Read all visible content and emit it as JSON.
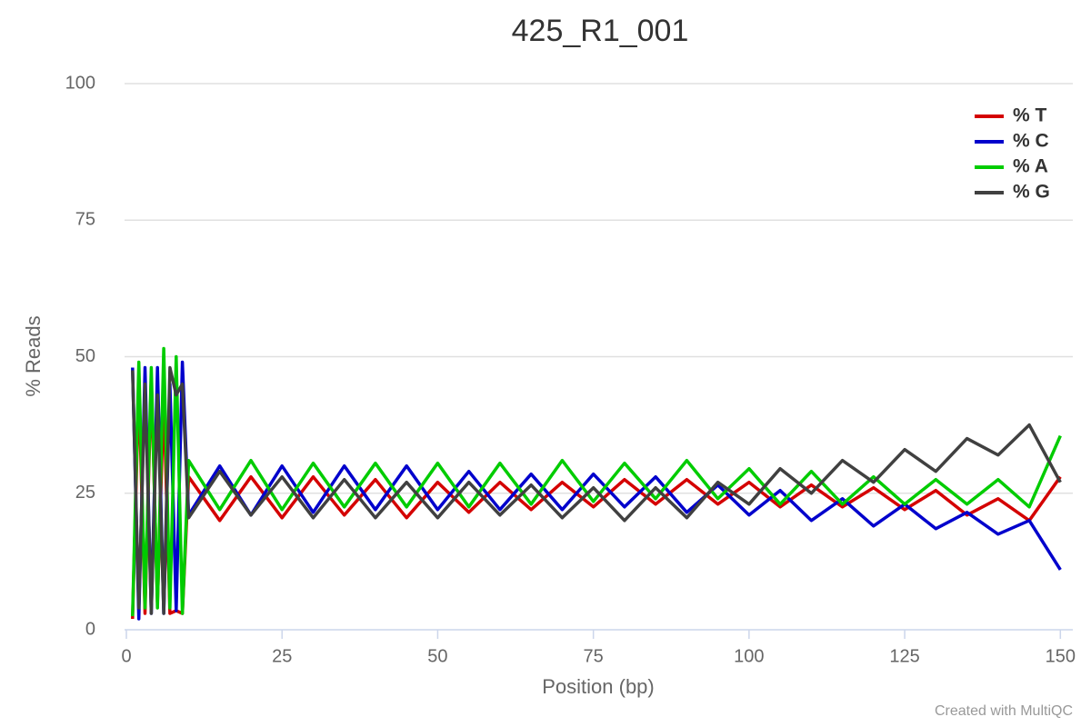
{
  "chart_data": {
    "type": "line",
    "title": "425_R1_001",
    "x_label": "Position (bp)",
    "y_label": "% Reads",
    "credit": "Created with MultiQC",
    "x": [
      1,
      2,
      3,
      4,
      5,
      6,
      7,
      8,
      9,
      10,
      15,
      20,
      25,
      30,
      35,
      40,
      45,
      50,
      55,
      60,
      65,
      70,
      75,
      80,
      85,
      90,
      95,
      100,
      105,
      110,
      115,
      120,
      125,
      130,
      135,
      140,
      145,
      150
    ],
    "series": [
      {
        "name": "% T",
        "color": "#d40000",
        "values": [
          2,
          45,
          3,
          46,
          5,
          42.5,
          3,
          3.5,
          3,
          28,
          20,
          28,
          20.5,
          28,
          21,
          27.5,
          20.5,
          27,
          21.5,
          27,
          22,
          27,
          22.5,
          27.5,
          23,
          27.5,
          23,
          27,
          22.5,
          26.5,
          22.5,
          26,
          22,
          25.5,
          21,
          24,
          20,
          28
        ]
      },
      {
        "name": "% C",
        "color": "#0000cc",
        "values": [
          48,
          2,
          48,
          3,
          48,
          3,
          45,
          3.5,
          49,
          21,
          30,
          21,
          30,
          21.5,
          30,
          22,
          30,
          22,
          29,
          22,
          28.5,
          22,
          28.5,
          22.5,
          28,
          21.5,
          26.5,
          21,
          25.5,
          20,
          24,
          19,
          23,
          18.5,
          21.5,
          17.5,
          20,
          11
        ]
      },
      {
        "name": "% A",
        "color": "#00cc00",
        "values": [
          2.5,
          49,
          4,
          48,
          4,
          51.5,
          4,
          50,
          3,
          31,
          22,
          31,
          22,
          30.5,
          22.5,
          30.5,
          22.5,
          30.5,
          22.5,
          30.5,
          23,
          31,
          23.5,
          30.5,
          24,
          31,
          24,
          29.5,
          23,
          29,
          23,
          28,
          23,
          27.5,
          23,
          27.5,
          22.5,
          35.5
        ]
      },
      {
        "name": "% G",
        "color": "#404040",
        "values": [
          47.5,
          4,
          45,
          3,
          43,
          3,
          48,
          43,
          45,
          20.5,
          29,
          21,
          28,
          20.5,
          27.5,
          20.5,
          27,
          20.5,
          27,
          21,
          26.5,
          20.5,
          26,
          20,
          26,
          20.5,
          27,
          23,
          29.5,
          25,
          31,
          27,
          33,
          29,
          35,
          32,
          37.5,
          27
        ]
      }
    ],
    "xlim": [
      0,
      152
    ],
    "ylim": [
      0,
      100
    ],
    "xticks": [
      0,
      25,
      50,
      75,
      100,
      125,
      150
    ],
    "yticks": [
      0,
      25,
      50,
      75,
      100
    ],
    "grid": true,
    "legend": "top-right"
  }
}
